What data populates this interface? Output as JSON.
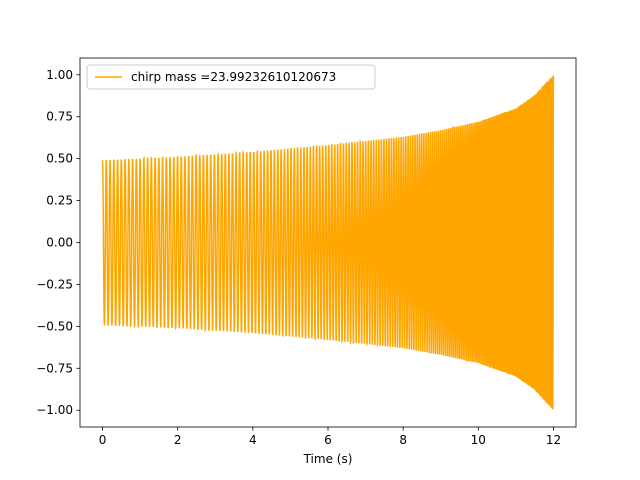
{
  "chart_data": {
    "type": "line",
    "title": "",
    "xlabel": "Time (s)",
    "ylabel": "",
    "xlim": [
      -0.6,
      12.6
    ],
    "ylim": [
      -1.1,
      1.1
    ],
    "xticks": [
      0,
      2,
      4,
      6,
      8,
      10,
      12
    ],
    "xtick_labels": [
      "0",
      "2",
      "4",
      "6",
      "8",
      "10",
      "12"
    ],
    "yticks": [
      1.0,
      0.75,
      0.5,
      0.25,
      0.0,
      -0.25,
      -0.5,
      -0.75,
      -1.0
    ],
    "ytick_labels": [
      "1.00",
      "0.75",
      "0.50",
      "0.25",
      "0.00",
      "−0.25",
      "−0.50",
      "−0.75",
      "−1.00"
    ],
    "grid": false,
    "legend_location": "upper left",
    "series": [
      {
        "name": "chirp mass =23.99232610120673",
        "color": "#FFA500",
        "waveform": "chirp",
        "t_start": 0,
        "t_end": 12,
        "amplitude_start": 0.49,
        "amplitude_end": 1.0,
        "envelope_samples": {
          "t": [
            0,
            2,
            4,
            6,
            8,
            9,
            10,
            11,
            11.5,
            12
          ],
          "amplitude": [
            0.49,
            0.51,
            0.54,
            0.58,
            0.63,
            0.67,
            0.72,
            0.8,
            0.88,
            1.0
          ]
        }
      }
    ]
  }
}
